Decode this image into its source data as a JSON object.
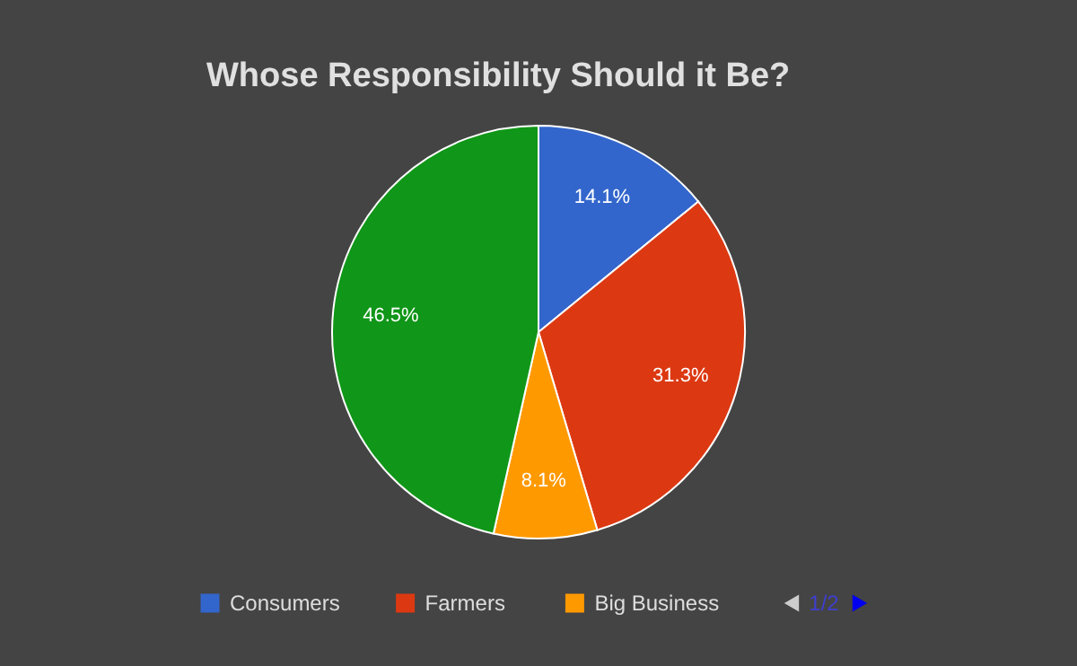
{
  "chart_data": {
    "type": "pie",
    "title": "Whose Responsibility Should it Be?",
    "categories": [
      "Consumers",
      "Farmers",
      "Big Business",
      null
    ],
    "values": [
      14.1,
      31.3,
      8.1,
      46.5
    ],
    "value_labels": [
      "14.1%",
      "31.3%",
      "8.1%",
      "46.5%"
    ],
    "colors": [
      "#3366cc",
      "#dc3912",
      "#ff9900",
      "#109618"
    ],
    "legend": "bottom",
    "annotations": [
      "1/2"
    ]
  }
}
